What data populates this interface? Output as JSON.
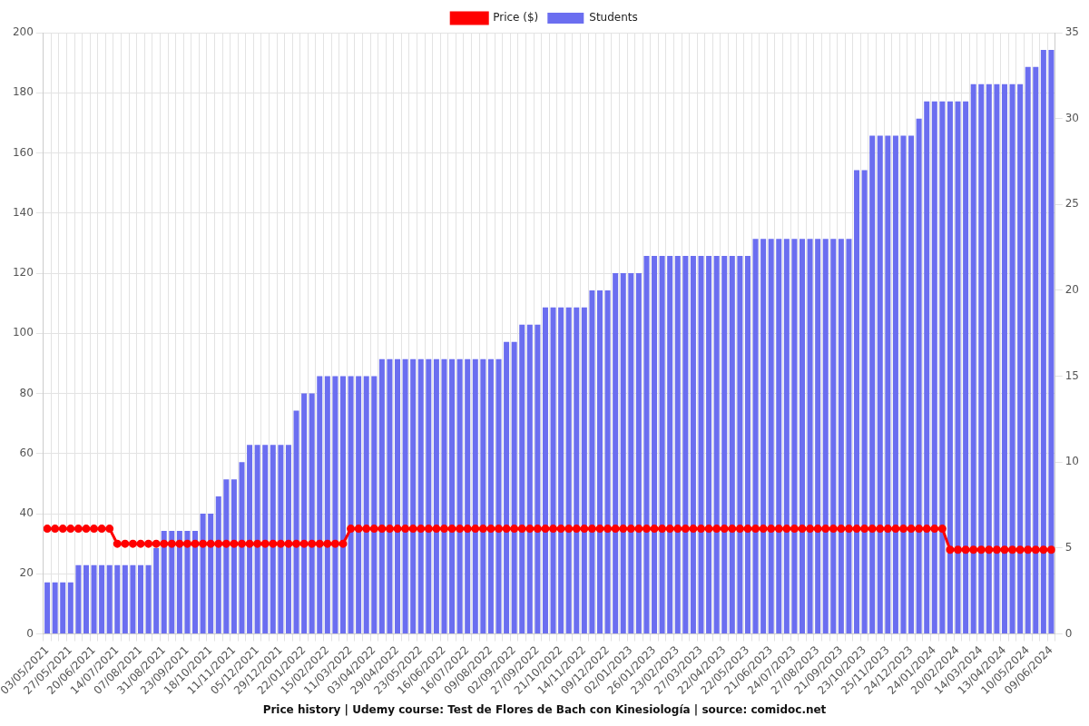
{
  "chart_data": {
    "type": "bar",
    "title": "Price history | Udemy course: Test de Flores de Bach con Kinesiología | source: comidoc.net",
    "categories": [
      "03/05/2021",
      null,
      null,
      "27/05/2021",
      null,
      null,
      "20/06/2021",
      null,
      null,
      "14/07/2021",
      null,
      null,
      "07/08/2021",
      null,
      null,
      "31/08/2021",
      null,
      null,
      "23/09/2021",
      null,
      null,
      "18/10/2021",
      null,
      null,
      "11/11/2021",
      null,
      null,
      "05/12/2021",
      null,
      null,
      "29/12/2021",
      null,
      null,
      "22/01/2022",
      null,
      null,
      "15/02/2022",
      null,
      null,
      "11/03/2022",
      null,
      null,
      "03/04/2022",
      null,
      null,
      "29/04/2022",
      null,
      null,
      "23/05/2022",
      null,
      null,
      "16/06/2022",
      null,
      null,
      "16/07/2022",
      null,
      null,
      "09/08/2022",
      null,
      null,
      "02/09/2022",
      null,
      null,
      "27/09/2022",
      null,
      null,
      "21/10/2022",
      null,
      null,
      "14/11/2022",
      null,
      null,
      "09/12/2022",
      null,
      null,
      "02/01/2023",
      null,
      null,
      "26/01/2023",
      null,
      null,
      "23/02/2023",
      null,
      null,
      "27/03/2023",
      null,
      null,
      "22/04/2023",
      null,
      null,
      "22/05/2023",
      null,
      null,
      "21/06/2023",
      null,
      null,
      "24/07/2023",
      null,
      null,
      "27/08/2023",
      null,
      null,
      "21/09/2023",
      null,
      null,
      "23/10/2023",
      null,
      null,
      "25/11/2023",
      null,
      null,
      "24/12/2023",
      null,
      null,
      "24/01/2024",
      null,
      null,
      "20/02/2024",
      null,
      null,
      "14/03/2024",
      null,
      null,
      "13/04/2024",
      null,
      null,
      "10/05/2024",
      null,
      null,
      "09/06/2024"
    ],
    "series": [
      {
        "name": "Price ($)",
        "type": "line",
        "color": "#ff0000",
        "marker": "circle",
        "values": [
          35,
          35,
          35,
          35,
          35,
          35,
          35,
          35,
          35,
          30,
          30,
          30,
          30,
          30,
          30,
          30,
          30,
          30,
          30,
          30,
          30,
          30,
          30,
          30,
          30,
          30,
          30,
          30,
          30,
          30,
          30,
          30,
          30,
          30,
          30,
          30,
          30,
          30,
          30,
          35,
          35,
          35,
          35,
          35,
          35,
          35,
          35,
          35,
          35,
          35,
          35,
          35,
          35,
          35,
          35,
          35,
          35,
          35,
          35,
          35,
          35,
          35,
          35,
          35,
          35,
          35,
          35,
          35,
          35,
          35,
          35,
          35,
          35,
          35,
          35,
          35,
          35,
          35,
          35,
          35,
          35,
          35,
          35,
          35,
          35,
          35,
          35,
          35,
          35,
          35,
          35,
          35,
          35,
          35,
          35,
          35,
          35,
          35,
          35,
          35,
          35,
          35,
          35,
          35,
          35,
          35,
          35,
          35,
          35,
          35,
          35,
          35,
          35,
          35,
          35,
          35,
          28,
          28,
          28,
          28,
          28,
          28,
          28,
          28,
          28,
          28,
          28,
          28,
          28,
          28
        ]
      },
      {
        "name": "Students",
        "type": "bar",
        "color": "#6b6ef0",
        "axis": "y2",
        "values": [
          3,
          3,
          3,
          3,
          4,
          4,
          4,
          4,
          4,
          4,
          4,
          4,
          4,
          4,
          5,
          6,
          6,
          6,
          6,
          6,
          7,
          7,
          8,
          9,
          9,
          10,
          11,
          11,
          11,
          11,
          11,
          11,
          13,
          14,
          14,
          15,
          15,
          15,
          15,
          15,
          15,
          15,
          15,
          16,
          16,
          16,
          16,
          16,
          16,
          16,
          16,
          16,
          16,
          16,
          16,
          16,
          16,
          16,
          16,
          17,
          17,
          18,
          18,
          18,
          19,
          19,
          19,
          19,
          19,
          19,
          20,
          20,
          20,
          21,
          21,
          21,
          21,
          22,
          22,
          22,
          22,
          22,
          22,
          22,
          22,
          22,
          22,
          22,
          22,
          22,
          22,
          23,
          23,
          23,
          23,
          23,
          23,
          23,
          23,
          23,
          23,
          23,
          23,
          23,
          27,
          27,
          29,
          29,
          29,
          29,
          29,
          29,
          30,
          31,
          31,
          31,
          31,
          31,
          31,
          32,
          32,
          32,
          32,
          32,
          32,
          32,
          33,
          33,
          34,
          34
        ]
      }
    ],
    "ylim": [
      0,
      200
    ],
    "yticks": [
      0,
      20,
      40,
      60,
      80,
      100,
      120,
      140,
      160,
      180,
      200
    ],
    "y2lim": [
      0,
      35
    ],
    "y2ticks": [
      0,
      5,
      10,
      15,
      20,
      25,
      30,
      35
    ],
    "grid": true,
    "legend": "top"
  }
}
